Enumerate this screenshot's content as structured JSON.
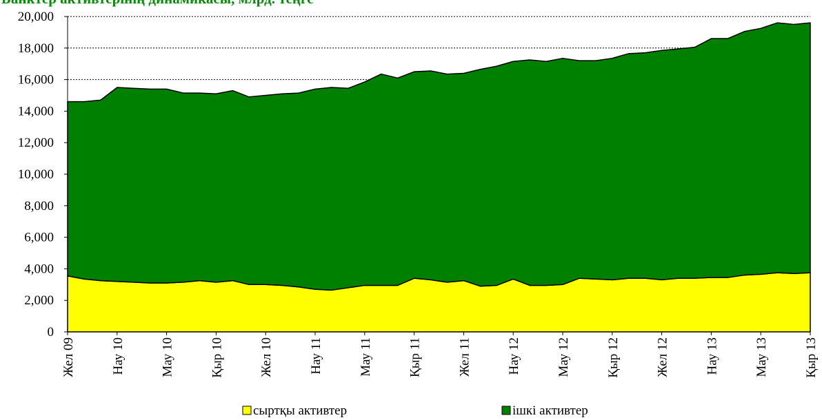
{
  "chart_data": {
    "type": "stacked_area",
    "title": "Банктер активтерінің динамикасы, млрд. теңге",
    "categories": [
      "Жел 09",
      null,
      null,
      "Нау 10",
      null,
      null,
      "Мау 10",
      null,
      null,
      "Қыр 10",
      null,
      null,
      "Жел 10",
      null,
      null,
      "Нау 11",
      null,
      null,
      "Мау 11",
      null,
      null,
      "Қыр 11",
      null,
      null,
      "Жел 11",
      null,
      null,
      "Нау 12",
      null,
      null,
      "Мау 12",
      null,
      null,
      "Қыр 12",
      null,
      null,
      "Жел 12",
      null,
      null,
      "Нау 13",
      null,
      null,
      "Мау 13",
      null,
      null,
      "Қыр 13"
    ],
    "series": [
      {
        "name": "сыртқы активтер",
        "color": "#ffff00",
        "values": [
          3550,
          3350,
          3250,
          3200,
          3150,
          3100,
          3100,
          3150,
          3250,
          3150,
          3250,
          3000,
          3000,
          2950,
          2850,
          2700,
          2650,
          2800,
          2950,
          2950,
          2950,
          3400,
          3300,
          3150,
          3250,
          2900,
          2950,
          3350,
          2950,
          2950,
          3000,
          3400,
          3350,
          3300,
          3400,
          3400,
          3300,
          3400,
          3400,
          3450,
          3450,
          3600,
          3650,
          3750,
          3700,
          3750
        ]
      },
      {
        "name": "ішкі активтер",
        "color": "#008000",
        "values": [
          11050,
          11250,
          11450,
          12300,
          12300,
          12300,
          12300,
          12000,
          11900,
          11950,
          12050,
          11900,
          12000,
          12150,
          12300,
          12700,
          12850,
          12650,
          12900,
          13400,
          13150,
          13100,
          13250,
          13200,
          13150,
          13750,
          13900,
          13800,
          14300,
          14200,
          14350,
          13800,
          13850,
          14050,
          14250,
          14300,
          14550,
          14550,
          14650,
          15150,
          15150,
          15450,
          15600,
          15850,
          15800,
          15850
        ]
      }
    ],
    "ylim": [
      0,
      20000
    ],
    "yticks": [
      0,
      {
        "value": 2000,
        "label": "2,000"
      },
      {
        "value": 4000,
        "label": "4,000"
      },
      {
        "value": 6000,
        "label": "6,000"
      },
      {
        "value": 8000,
        "label": "8,000"
      },
      {
        "value": 10000,
        "label": "10,000"
      },
      {
        "value": 12000,
        "label": "12,000"
      },
      {
        "value": 14000,
        "label": "14,000"
      },
      {
        "value": 16000,
        "label": "16,000"
      },
      {
        "value": 18000,
        "label": "18,000"
      },
      {
        "value": 20000,
        "label": "20,000"
      }
    ],
    "grid": true,
    "legend": "bottom"
  }
}
